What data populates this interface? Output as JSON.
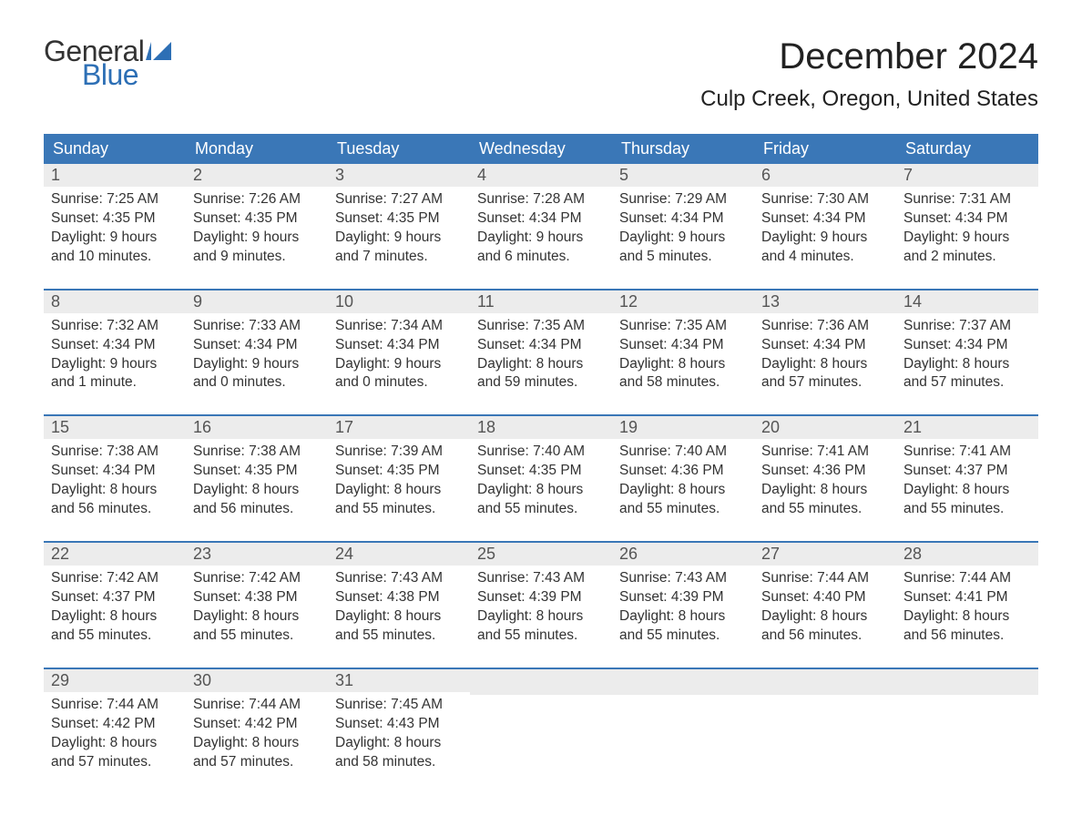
{
  "logo": {
    "word1": "General",
    "word2": "Blue",
    "flag_color": "#2d6fb5"
  },
  "title": "December 2024",
  "location": "Culp Creek, Oregon, United States",
  "colors": {
    "header_bg": "#3a77b7",
    "header_text": "#ffffff",
    "daynum_bg": "#ececec",
    "week_border": "#3a77b7",
    "body_text": "#333333"
  },
  "day_headers": [
    "Sunday",
    "Monday",
    "Tuesday",
    "Wednesday",
    "Thursday",
    "Friday",
    "Saturday"
  ],
  "weeks": [
    [
      {
        "n": "1",
        "sr": "Sunrise: 7:25 AM",
        "ss": "Sunset: 4:35 PM",
        "d1": "Daylight: 9 hours",
        "d2": "and 10 minutes."
      },
      {
        "n": "2",
        "sr": "Sunrise: 7:26 AM",
        "ss": "Sunset: 4:35 PM",
        "d1": "Daylight: 9 hours",
        "d2": "and 9 minutes."
      },
      {
        "n": "3",
        "sr": "Sunrise: 7:27 AM",
        "ss": "Sunset: 4:35 PM",
        "d1": "Daylight: 9 hours",
        "d2": "and 7 minutes."
      },
      {
        "n": "4",
        "sr": "Sunrise: 7:28 AM",
        "ss": "Sunset: 4:34 PM",
        "d1": "Daylight: 9 hours",
        "d2": "and 6 minutes."
      },
      {
        "n": "5",
        "sr": "Sunrise: 7:29 AM",
        "ss": "Sunset: 4:34 PM",
        "d1": "Daylight: 9 hours",
        "d2": "and 5 minutes."
      },
      {
        "n": "6",
        "sr": "Sunrise: 7:30 AM",
        "ss": "Sunset: 4:34 PM",
        "d1": "Daylight: 9 hours",
        "d2": "and 4 minutes."
      },
      {
        "n": "7",
        "sr": "Sunrise: 7:31 AM",
        "ss": "Sunset: 4:34 PM",
        "d1": "Daylight: 9 hours",
        "d2": "and 2 minutes."
      }
    ],
    [
      {
        "n": "8",
        "sr": "Sunrise: 7:32 AM",
        "ss": "Sunset: 4:34 PM",
        "d1": "Daylight: 9 hours",
        "d2": "and 1 minute."
      },
      {
        "n": "9",
        "sr": "Sunrise: 7:33 AM",
        "ss": "Sunset: 4:34 PM",
        "d1": "Daylight: 9 hours",
        "d2": "and 0 minutes."
      },
      {
        "n": "10",
        "sr": "Sunrise: 7:34 AM",
        "ss": "Sunset: 4:34 PM",
        "d1": "Daylight: 9 hours",
        "d2": "and 0 minutes."
      },
      {
        "n": "11",
        "sr": "Sunrise: 7:35 AM",
        "ss": "Sunset: 4:34 PM",
        "d1": "Daylight: 8 hours",
        "d2": "and 59 minutes."
      },
      {
        "n": "12",
        "sr": "Sunrise: 7:35 AM",
        "ss": "Sunset: 4:34 PM",
        "d1": "Daylight: 8 hours",
        "d2": "and 58 minutes."
      },
      {
        "n": "13",
        "sr": "Sunrise: 7:36 AM",
        "ss": "Sunset: 4:34 PM",
        "d1": "Daylight: 8 hours",
        "d2": "and 57 minutes."
      },
      {
        "n": "14",
        "sr": "Sunrise: 7:37 AM",
        "ss": "Sunset: 4:34 PM",
        "d1": "Daylight: 8 hours",
        "d2": "and 57 minutes."
      }
    ],
    [
      {
        "n": "15",
        "sr": "Sunrise: 7:38 AM",
        "ss": "Sunset: 4:34 PM",
        "d1": "Daylight: 8 hours",
        "d2": "and 56 minutes."
      },
      {
        "n": "16",
        "sr": "Sunrise: 7:38 AM",
        "ss": "Sunset: 4:35 PM",
        "d1": "Daylight: 8 hours",
        "d2": "and 56 minutes."
      },
      {
        "n": "17",
        "sr": "Sunrise: 7:39 AM",
        "ss": "Sunset: 4:35 PM",
        "d1": "Daylight: 8 hours",
        "d2": "and 55 minutes."
      },
      {
        "n": "18",
        "sr": "Sunrise: 7:40 AM",
        "ss": "Sunset: 4:35 PM",
        "d1": "Daylight: 8 hours",
        "d2": "and 55 minutes."
      },
      {
        "n": "19",
        "sr": "Sunrise: 7:40 AM",
        "ss": "Sunset: 4:36 PM",
        "d1": "Daylight: 8 hours",
        "d2": "and 55 minutes."
      },
      {
        "n": "20",
        "sr": "Sunrise: 7:41 AM",
        "ss": "Sunset: 4:36 PM",
        "d1": "Daylight: 8 hours",
        "d2": "and 55 minutes."
      },
      {
        "n": "21",
        "sr": "Sunrise: 7:41 AM",
        "ss": "Sunset: 4:37 PM",
        "d1": "Daylight: 8 hours",
        "d2": "and 55 minutes."
      }
    ],
    [
      {
        "n": "22",
        "sr": "Sunrise: 7:42 AM",
        "ss": "Sunset: 4:37 PM",
        "d1": "Daylight: 8 hours",
        "d2": "and 55 minutes."
      },
      {
        "n": "23",
        "sr": "Sunrise: 7:42 AM",
        "ss": "Sunset: 4:38 PM",
        "d1": "Daylight: 8 hours",
        "d2": "and 55 minutes."
      },
      {
        "n": "24",
        "sr": "Sunrise: 7:43 AM",
        "ss": "Sunset: 4:38 PM",
        "d1": "Daylight: 8 hours",
        "d2": "and 55 minutes."
      },
      {
        "n": "25",
        "sr": "Sunrise: 7:43 AM",
        "ss": "Sunset: 4:39 PM",
        "d1": "Daylight: 8 hours",
        "d2": "and 55 minutes."
      },
      {
        "n": "26",
        "sr": "Sunrise: 7:43 AM",
        "ss": "Sunset: 4:39 PM",
        "d1": "Daylight: 8 hours",
        "d2": "and 55 minutes."
      },
      {
        "n": "27",
        "sr": "Sunrise: 7:44 AM",
        "ss": "Sunset: 4:40 PM",
        "d1": "Daylight: 8 hours",
        "d2": "and 56 minutes."
      },
      {
        "n": "28",
        "sr": "Sunrise: 7:44 AM",
        "ss": "Sunset: 4:41 PM",
        "d1": "Daylight: 8 hours",
        "d2": "and 56 minutes."
      }
    ],
    [
      {
        "n": "29",
        "sr": "Sunrise: 7:44 AM",
        "ss": "Sunset: 4:42 PM",
        "d1": "Daylight: 8 hours",
        "d2": "and 57 minutes."
      },
      {
        "n": "30",
        "sr": "Sunrise: 7:44 AM",
        "ss": "Sunset: 4:42 PM",
        "d1": "Daylight: 8 hours",
        "d2": "and 57 minutes."
      },
      {
        "n": "31",
        "sr": "Sunrise: 7:45 AM",
        "ss": "Sunset: 4:43 PM",
        "d1": "Daylight: 8 hours",
        "d2": "and 58 minutes."
      },
      null,
      null,
      null,
      null
    ]
  ]
}
